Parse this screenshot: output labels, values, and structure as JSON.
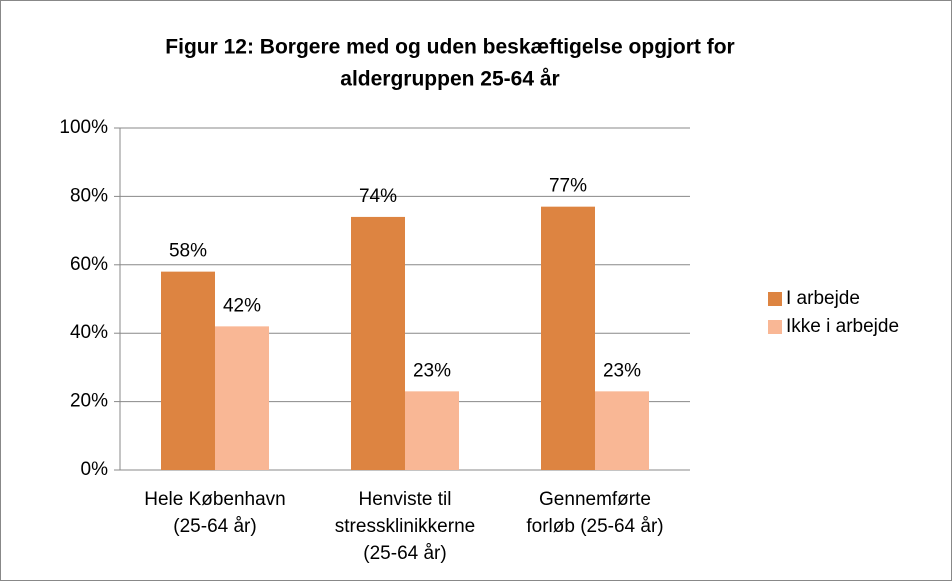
{
  "chart_data": {
    "type": "bar",
    "title": [
      "Figur 12: Borgere med og uden beskæftigelse opgjort for",
      "aldergruppen 25-64 år"
    ],
    "categories": [
      [
        "Hele København",
        "(25-64 år)"
      ],
      [
        "Henviste til",
        "stressklinikkerne",
        "(25-64 år)"
      ],
      [
        "Gennemførte",
        "forløb (25-64 år)"
      ]
    ],
    "series": [
      {
        "name": "I arbejde",
        "color": "#dd8441",
        "values": [
          58,
          74,
          77
        ],
        "value_labels": [
          "58%",
          "74%",
          "77%"
        ]
      },
      {
        "name": "Ikke i arbejde",
        "color": "#f9b795",
        "values": [
          42,
          23,
          23
        ],
        "value_labels": [
          "42%",
          "23%",
          "23%"
        ]
      }
    ],
    "ylim": [
      0,
      100
    ],
    "yticks": [
      {
        "value": 0,
        "label": "0%"
      },
      {
        "value": 20,
        "label": "20%"
      },
      {
        "value": 40,
        "label": "40%"
      },
      {
        "value": 60,
        "label": "60%"
      },
      {
        "value": 80,
        "label": "80%"
      },
      {
        "value": 100,
        "label": "100%"
      }
    ],
    "grid": true,
    "legend": "right"
  }
}
